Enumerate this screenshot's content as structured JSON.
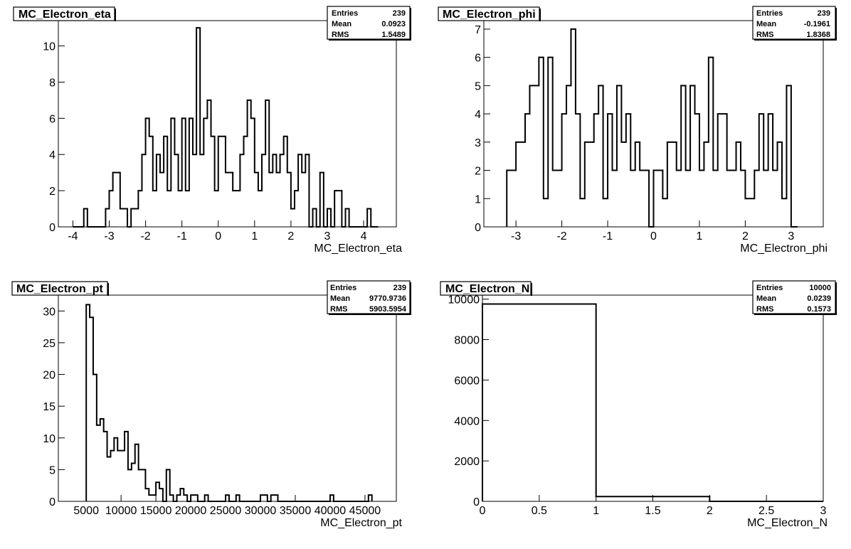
{
  "chart_data": [
    {
      "type": "histogram",
      "title": "MC_Electron_eta",
      "xlabel": "MC_Electron_eta",
      "xlim": [
        -4.4,
        4.9
      ],
      "ylim": [
        0,
        11.4
      ],
      "xticks": [
        -4,
        -3,
        -2,
        -1,
        0,
        1,
        2,
        3,
        4
      ],
      "xtick_labels": [
        "-4",
        "-3",
        "-2",
        "-1",
        "0",
        "1",
        "2",
        "3",
        "4"
      ],
      "yticks": [
        0,
        2,
        4,
        6,
        8,
        10
      ],
      "ytick_labels": [
        "0",
        "2",
        "4",
        "6",
        "8",
        "10"
      ],
      "stats": {
        "entries_label": "Entries",
        "entries": "239",
        "mean_label": "Mean",
        "mean": "0.0923",
        "rms_label": "RMS",
        "rms": "1.5489"
      },
      "bin_edges": [
        -4.0,
        -3.7,
        -3.6,
        -3.1,
        -3.0,
        -2.9,
        -2.7,
        -2.5,
        -2.4,
        -2.2,
        -2.1,
        -2.0,
        -1.9,
        -1.8,
        -1.7,
        -1.6,
        -1.5,
        -1.4,
        -1.3,
        -1.2,
        -1.1,
        -1.0,
        -0.9,
        -0.8,
        -0.7,
        -0.6,
        -0.5,
        -0.4,
        -0.3,
        -0.2,
        -0.1,
        0.0,
        0.2,
        0.4,
        0.6,
        0.7,
        0.8,
        0.9,
        1.0,
        1.1,
        1.2,
        1.3,
        1.4,
        1.5,
        1.6,
        1.7,
        1.8,
        1.9,
        2.0,
        2.1,
        2.2,
        2.3,
        2.4,
        2.5,
        2.6,
        2.7,
        2.8,
        2.9,
        3.0,
        3.1,
        3.2,
        3.4,
        3.5,
        3.6,
        4.1,
        4.2,
        4.4
      ],
      "values": [
        0,
        1,
        0,
        1,
        2,
        3,
        1,
        0,
        1,
        2,
        4,
        6,
        5,
        2,
        4,
        3,
        5,
        2,
        6,
        4,
        2,
        6,
        2,
        6,
        4,
        11,
        4,
        6,
        7,
        5,
        2,
        5,
        3,
        2,
        4,
        5,
        7,
        6,
        3,
        2,
        4,
        7,
        3,
        4,
        3,
        4,
        5,
        3,
        1,
        2,
        4,
        3,
        4,
        0,
        1,
        0,
        3,
        0,
        1,
        0,
        2,
        0,
        1,
        0,
        1,
        0
      ]
    },
    {
      "type": "histogram",
      "title": "MC_Electron_phi",
      "xlabel": "MC_Electron_phi",
      "xlim": [
        -3.7,
        3.7
      ],
      "ylim": [
        0,
        7.3
      ],
      "xticks": [
        -3,
        -2,
        -1,
        0,
        1,
        2,
        3
      ],
      "xtick_labels": [
        "-3",
        "-2",
        "-1",
        "0",
        "1",
        "2",
        "3"
      ],
      "yticks": [
        0,
        1,
        2,
        3,
        4,
        5,
        6,
        7
      ],
      "ytick_labels": [
        "0",
        "1",
        "2",
        "3",
        "4",
        "5",
        "6",
        "7"
      ],
      "stats": {
        "entries_label": "Entries",
        "entries": "239",
        "mean_label": "Mean",
        "mean": "-0.1961",
        "rms_label": "RMS",
        "rms": "1.8368"
      },
      "bin_edges": [
        -3.2,
        -3.1,
        -3.0,
        -2.9,
        -2.8,
        -2.7,
        -2.6,
        -2.5,
        -2.4,
        -2.3,
        -2.2,
        -2.1,
        -2.0,
        -1.9,
        -1.8,
        -1.7,
        -1.6,
        -1.5,
        -1.4,
        -1.3,
        -1.2,
        -1.1,
        -1.0,
        -0.9,
        -0.8,
        -0.7,
        -0.6,
        -0.5,
        -0.4,
        -0.3,
        -0.2,
        -0.1,
        0.0,
        0.1,
        0.2,
        0.3,
        0.4,
        0.5,
        0.6,
        0.7,
        0.8,
        0.9,
        1.0,
        1.1,
        1.2,
        1.3,
        1.4,
        1.5,
        1.6,
        1.7,
        1.8,
        1.9,
        2.0,
        2.1,
        2.2,
        2.3,
        2.4,
        2.5,
        2.6,
        2.7,
        2.8,
        2.9,
        3.0,
        3.1,
        3.14
      ],
      "values": [
        2,
        2,
        3,
        3,
        4,
        5,
        5,
        6,
        1,
        6,
        2,
        2,
        4,
        5,
        7,
        4,
        1,
        3,
        3,
        4,
        5,
        1,
        4,
        2,
        5,
        3,
        4,
        2,
        3,
        2,
        2,
        0,
        2,
        2,
        1,
        3,
        3,
        2,
        5,
        2,
        5,
        4,
        2,
        3,
        6,
        2,
        4,
        4,
        2,
        2,
        3,
        2,
        1,
        1,
        2,
        4,
        2,
        4,
        2,
        3,
        1,
        5,
        0,
        0
      ]
    },
    {
      "type": "histogram",
      "title": "MC_Electron_pt",
      "xlabel": "MC_Electron_pt",
      "xlim": [
        1000,
        49500
      ],
      "ylim": [
        0,
        32.5
      ],
      "xticks": [
        5000,
        10000,
        15000,
        20000,
        25000,
        30000,
        35000,
        40000,
        45000
      ],
      "xtick_labels": [
        "5000",
        "10000",
        "15000",
        "20000",
        "25000",
        "30000",
        "35000",
        "40000",
        "45000"
      ],
      "yticks": [
        0,
        5,
        10,
        15,
        20,
        25,
        30
      ],
      "ytick_labels": [
        "0",
        "5",
        "10",
        "15",
        "20",
        "25",
        "30"
      ],
      "stats": {
        "entries_label": "Entries",
        "entries": "239",
        "mean_label": "Mean",
        "mean": "9770.9736",
        "rms_label": "RMS",
        "rms": "5903.5954"
      },
      "bin_edges": [
        5000,
        5500,
        6000,
        6500,
        7000,
        7500,
        8000,
        8500,
        9000,
        9500,
        10000,
        10500,
        11000,
        11500,
        12000,
        12500,
        13000,
        13500,
        14000,
        14500,
        15000,
        15500,
        16000,
        16500,
        17000,
        17500,
        18000,
        18500,
        19000,
        19500,
        20000,
        20500,
        21000,
        21500,
        22000,
        22500,
        23000,
        23500,
        24000,
        24500,
        25000,
        25500,
        26000,
        26500,
        27000,
        27500,
        28000,
        28500,
        29000,
        29500,
        30000,
        30500,
        31000,
        31500,
        32000,
        32500,
        33000,
        33500,
        34000,
        34500,
        35000,
        35500,
        36000,
        36500,
        37000,
        37500,
        38000,
        38500,
        39000,
        39500,
        40000,
        40500,
        41000,
        41500,
        42000,
        42500,
        43000,
        43500,
        44000,
        44500,
        45000,
        45500,
        46000
      ],
      "values": [
        31,
        29,
        20,
        12,
        13,
        11,
        7,
        8,
        10,
        8,
        8,
        11,
        5,
        6,
        9,
        5,
        5,
        2,
        1,
        1,
        3,
        2,
        0,
        5,
        1,
        0,
        1,
        2,
        1,
        0,
        1,
        1,
        0,
        0,
        1,
        0,
        0,
        0,
        0,
        0,
        1,
        0,
        0,
        1,
        0,
        0,
        0,
        0,
        0,
        0,
        1,
        1,
        0,
        1,
        1,
        0,
        0,
        0,
        0,
        0,
        0,
        0,
        0,
        0,
        0,
        0,
        0,
        0,
        0,
        0,
        1,
        0,
        0,
        0,
        0,
        0,
        0,
        0,
        0,
        0,
        0,
        1
      ]
    },
    {
      "type": "histogram",
      "title": "MC_Electron_N",
      "xlabel": "MC_Electron_N",
      "xlim": [
        0,
        3
      ],
      "ylim": [
        0,
        10200
      ],
      "xticks": [
        0,
        0.5,
        1,
        1.5,
        2,
        2.5,
        3
      ],
      "xtick_labels": [
        "0",
        "0.5",
        "1",
        "1.5",
        "2",
        "2.5",
        "3"
      ],
      "yticks": [
        0,
        2000,
        4000,
        6000,
        8000,
        10000
      ],
      "ytick_labels": [
        "0",
        "2000",
        "4000",
        "6000",
        "8000",
        "10000"
      ],
      "stats": {
        "entries_label": "Entries",
        "entries": "10000",
        "mean_label": "Mean",
        "mean": "0.0239",
        "rms_label": "RMS",
        "rms": "0.1573"
      },
      "bin_edges": [
        0,
        1,
        2,
        3
      ],
      "values": [
        9761,
        239,
        0
      ]
    }
  ]
}
